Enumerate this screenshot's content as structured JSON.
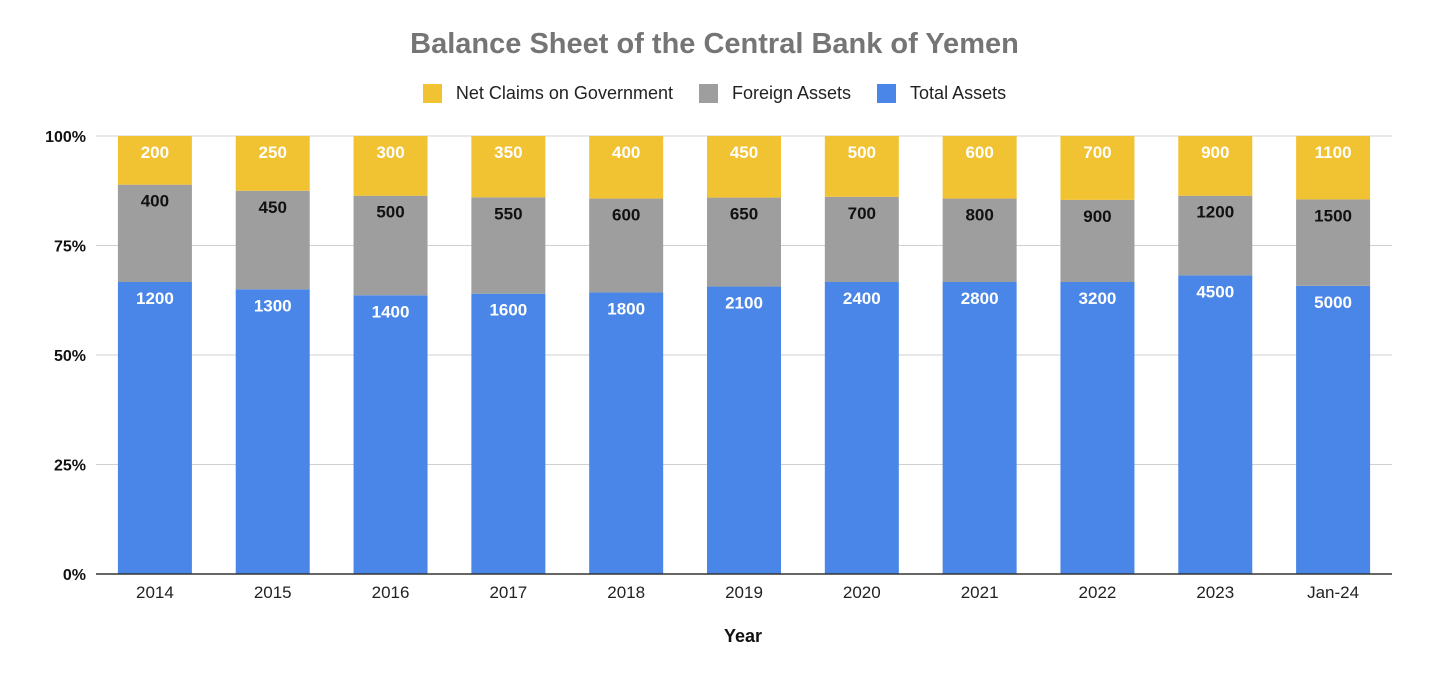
{
  "chart_data": {
    "type": "bar",
    "stacked": "percent",
    "title": "Balance Sheet of the Central Bank of Yemen",
    "xlabel": "Year",
    "ylabel": "",
    "categories": [
      "2014",
      "2015",
      "2016",
      "2017",
      "2018",
      "2019",
      "2020",
      "2021",
      "2022",
      "2023",
      "Jan-24"
    ],
    "series": [
      {
        "name": "Total Assets",
        "color": "#4a86e8",
        "label_color": "#ffffff",
        "values": [
          1200,
          1300,
          1400,
          1600,
          1800,
          2100,
          2400,
          2800,
          3200,
          4500,
          5000
        ]
      },
      {
        "name": "Foreign Assets",
        "color": "#9e9e9e",
        "label_color": "#111111",
        "values": [
          400,
          450,
          500,
          550,
          600,
          650,
          700,
          800,
          900,
          1200,
          1500
        ]
      },
      {
        "name": "Net Claims on Government",
        "color": "#f1c232",
        "label_color": "#ffffff",
        "values": [
          200,
          250,
          300,
          350,
          400,
          450,
          500,
          600,
          700,
          900,
          1100
        ]
      }
    ],
    "legend_order": [
      "Net Claims on Government",
      "Foreign Assets",
      "Total Assets"
    ],
    "y_ticks": [
      "0%",
      "25%",
      "50%",
      "75%",
      "100%"
    ],
    "ylim": [
      0,
      100
    ],
    "grid": true,
    "legend_position": "top"
  }
}
